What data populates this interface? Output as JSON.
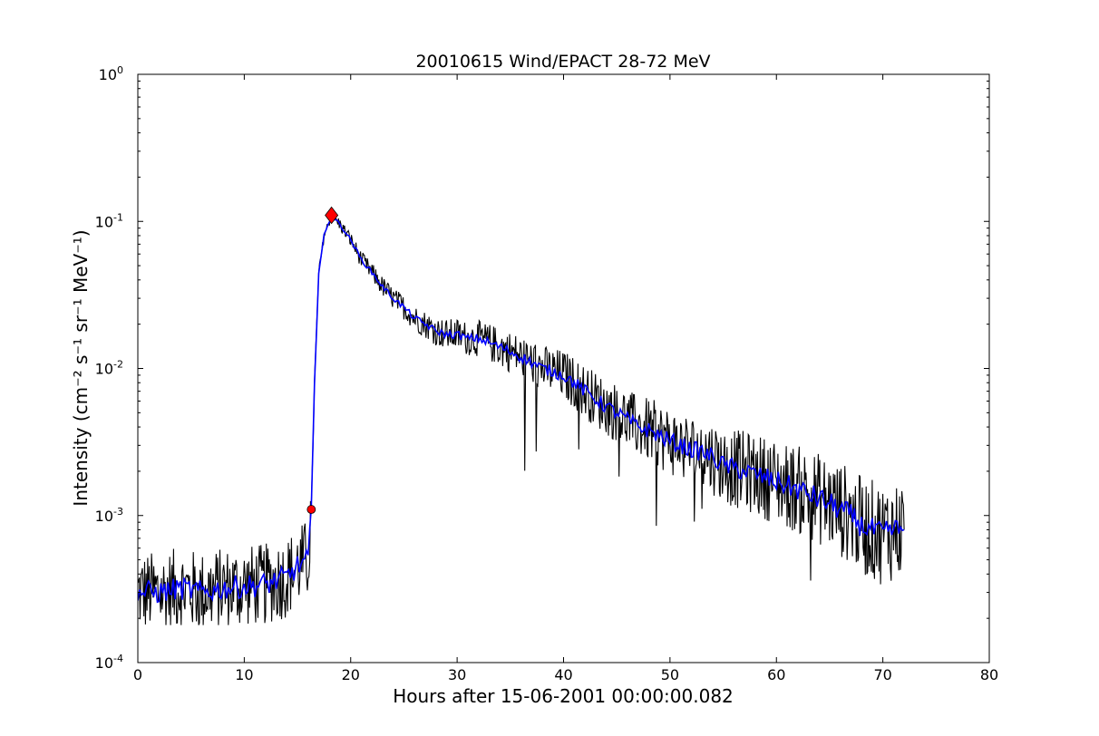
{
  "chart_data": {
    "type": "line",
    "title": "20010615 Wind/EPACT 28-72 MeV",
    "xlabel": "Hours after 15-06-2001 00:00:00.082",
    "ylabel": "Intensity (cm⁻² s⁻¹ sr⁻¹ MeV⁻¹)",
    "xlim": [
      0,
      80
    ],
    "ylim": [
      0.0001,
      1
    ],
    "yscale": "log",
    "grid": false,
    "x_ticks": [
      "0",
      "10",
      "20",
      "30",
      "40",
      "50",
      "60",
      "70",
      "80"
    ],
    "x_tick_values": [
      0,
      10,
      20,
      30,
      40,
      50,
      60,
      70,
      80
    ],
    "y_ticks": [
      {
        "base": "10",
        "exp": "-4",
        "value": 0.0001
      },
      {
        "base": "10",
        "exp": "-3",
        "value": 0.001
      },
      {
        "base": "10",
        "exp": "-2",
        "value": 0.01
      },
      {
        "base": "10",
        "exp": "-1",
        "value": 0.1
      },
      {
        "base": "10",
        "exp": "0",
        "value": 1
      }
    ],
    "series": [
      {
        "color": "#000000",
        "style": "raw-noisy",
        "x": [
          0,
          2,
          4,
          6,
          8,
          10,
          12,
          14,
          15,
          16,
          16.3,
          16.6,
          17,
          17.5,
          18.2,
          19,
          20,
          21,
          22,
          23,
          24,
          25,
          26,
          27,
          28,
          29,
          30,
          31,
          32,
          33,
          34,
          35,
          36,
          37,
          38,
          39,
          40,
          41,
          42,
          43,
          44,
          45,
          46,
          47,
          48,
          49,
          50,
          51,
          52,
          53,
          54,
          55,
          56,
          57,
          58,
          59,
          60,
          61,
          62,
          63,
          64,
          65,
          66,
          67,
          68,
          69,
          70,
          71,
          72
        ],
        "y": [
          0.0003,
          0.0003,
          0.00032,
          0.0003,
          0.00032,
          0.00033,
          0.00034,
          0.00038,
          0.00045,
          0.0005,
          0.0011,
          0.008,
          0.045,
          0.08,
          0.11,
          0.095,
          0.075,
          0.055,
          0.045,
          0.036,
          0.03,
          0.026,
          0.022,
          0.02,
          0.018,
          0.017,
          0.017,
          0.016,
          0.016,
          0.015,
          0.014,
          0.013,
          0.012,
          0.011,
          0.01,
          0.0095,
          0.009,
          0.008,
          0.007,
          0.0062,
          0.0055,
          0.005,
          0.0045,
          0.004,
          0.0038,
          0.0035,
          0.0032,
          0.003,
          0.0028,
          0.0027,
          0.0025,
          0.0022,
          0.0021,
          0.002,
          0.0019,
          0.0018,
          0.0017,
          0.0016,
          0.0015,
          0.0014,
          0.0013,
          0.0012,
          0.0011,
          0.001,
          0.00085,
          0.0008,
          0.00075,
          0.0008,
          0.0008
        ]
      },
      {
        "color": "#0000ff",
        "style": "smoothed",
        "x": [
          0,
          2,
          4,
          6,
          8,
          10,
          12,
          14,
          15,
          16,
          16.3,
          16.6,
          17,
          17.5,
          18.2,
          19,
          20,
          21,
          22,
          23,
          24,
          25,
          26,
          27,
          28,
          29,
          30,
          31,
          32,
          33,
          34,
          35,
          36,
          37,
          38,
          39,
          40,
          41,
          42,
          43,
          44,
          45,
          46,
          47,
          48,
          49,
          50,
          51,
          52,
          53,
          54,
          55,
          56,
          57,
          58,
          59,
          60,
          61,
          62,
          63,
          64,
          65,
          66,
          67,
          68,
          69,
          70,
          71,
          72
        ],
        "y": [
          0.0003,
          0.0003,
          0.00032,
          0.0003,
          0.00032,
          0.00033,
          0.00034,
          0.00038,
          0.00045,
          0.0005,
          0.0011,
          0.008,
          0.045,
          0.08,
          0.11,
          0.095,
          0.075,
          0.055,
          0.045,
          0.036,
          0.03,
          0.026,
          0.022,
          0.02,
          0.018,
          0.017,
          0.017,
          0.016,
          0.016,
          0.015,
          0.014,
          0.013,
          0.012,
          0.011,
          0.01,
          0.0095,
          0.009,
          0.008,
          0.007,
          0.0062,
          0.0055,
          0.005,
          0.0045,
          0.004,
          0.0038,
          0.0035,
          0.0032,
          0.003,
          0.0028,
          0.0027,
          0.0025,
          0.0022,
          0.0021,
          0.002,
          0.0019,
          0.0018,
          0.0017,
          0.0016,
          0.0015,
          0.0014,
          0.0013,
          0.0012,
          0.0011,
          0.001,
          0.00085,
          0.0008,
          0.00075,
          0.0008,
          0.0008
        ]
      }
    ],
    "markers": [
      {
        "shape": "circle",
        "color": "#ff0000",
        "x": 16.3,
        "y": 0.0011
      },
      {
        "shape": "diamond",
        "color": "#ff0000",
        "x": 18.2,
        "y": 0.11
      }
    ]
  }
}
